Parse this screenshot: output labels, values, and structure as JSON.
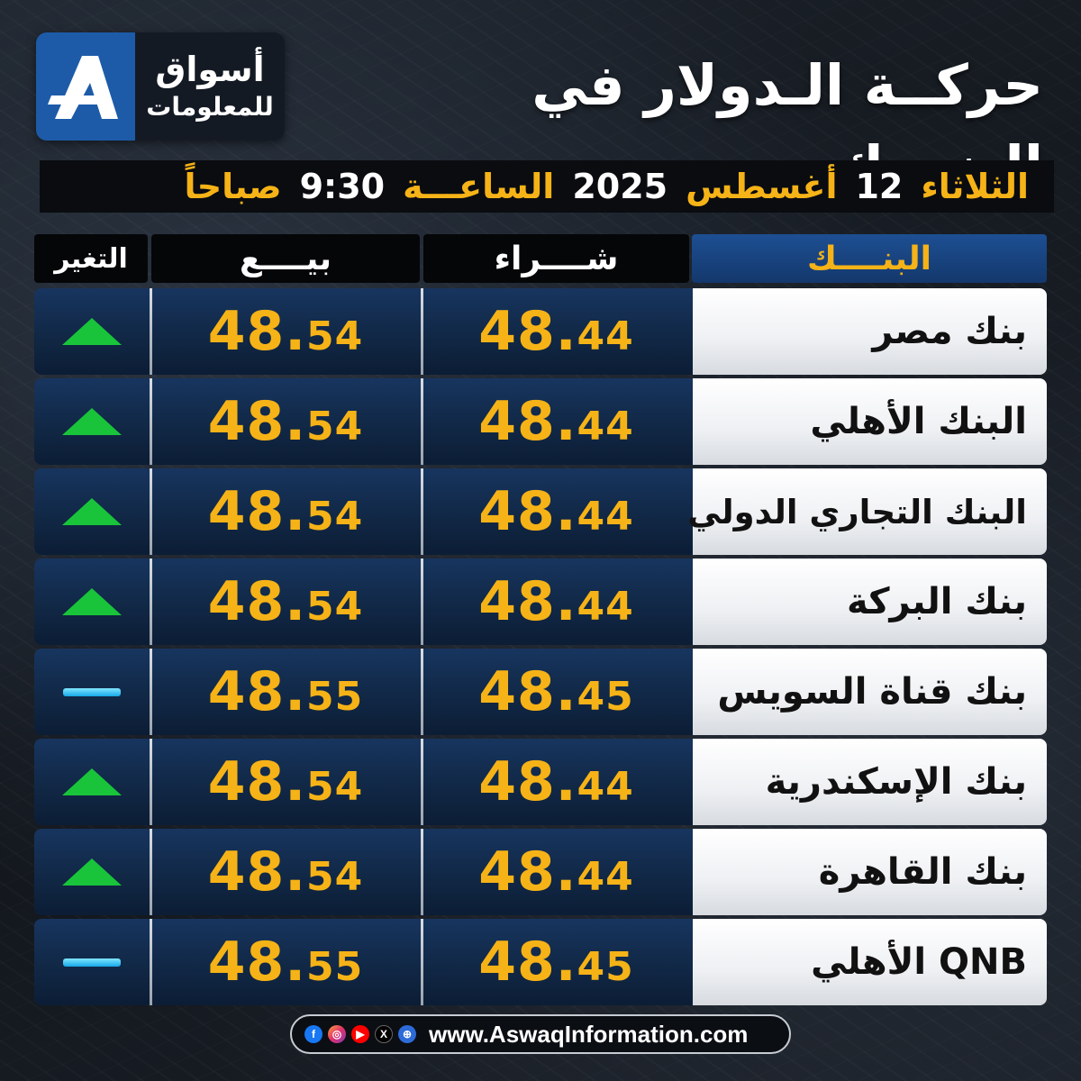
{
  "logo": {
    "line1": "أسواق",
    "line2": "للمعلومات"
  },
  "title": "حركــة الـدولار في البنــوك",
  "date_bar": {
    "day": "الثلاثاء",
    "day_num": "12",
    "month": "أغسطس",
    "year": "2025",
    "time_label": "الساعـــة",
    "time": "9:30",
    "period": "صباحاً"
  },
  "headers": {
    "bank": "البنــــك",
    "buy": "شــــراء",
    "sell": "بيــــع",
    "change": "التغير"
  },
  "rows": [
    {
      "bank": "بنك مصر",
      "buy_int": "48.",
      "buy_dec": "44",
      "sell_int": "48.",
      "sell_dec": "54",
      "change": "up"
    },
    {
      "bank": "البنك الأهلي",
      "buy_int": "48.",
      "buy_dec": "44",
      "sell_int": "48.",
      "sell_dec": "54",
      "change": "up"
    },
    {
      "bank": "البنك التجاري الدولي",
      "buy_int": "48.",
      "buy_dec": "44",
      "sell_int": "48.",
      "sell_dec": "54",
      "change": "up"
    },
    {
      "bank": "بنك البركة",
      "buy_int": "48.",
      "buy_dec": "44",
      "sell_int": "48.",
      "sell_dec": "54",
      "change": "up"
    },
    {
      "bank": "بنك قناة السويس",
      "buy_int": "48.",
      "buy_dec": "45",
      "sell_int": "48.",
      "sell_dec": "55",
      "change": "flat"
    },
    {
      "bank": "بنك الإسكندرية",
      "buy_int": "48.",
      "buy_dec": "44",
      "sell_int": "48.",
      "sell_dec": "54",
      "change": "up"
    },
    {
      "bank": "بنك القاهرة",
      "buy_int": "48.",
      "buy_dec": "44",
      "sell_int": "48.",
      "sell_dec": "54",
      "change": "up"
    },
    {
      "bank": "QNB الأهلي",
      "buy_int": "48.",
      "buy_dec": "45",
      "sell_int": "48.",
      "sell_dec": "55",
      "change": "flat"
    }
  ],
  "footer": {
    "url": "www.AswaqInformation.com",
    "social_icons": [
      "facebook-icon",
      "instagram-icon",
      "youtube-icon",
      "x-icon",
      "web-icon"
    ]
  },
  "colors": {
    "accent": "#f6b317",
    "up": "#19c43a",
    "flat": "#16a7e8",
    "brand": "#1d5ba8"
  }
}
